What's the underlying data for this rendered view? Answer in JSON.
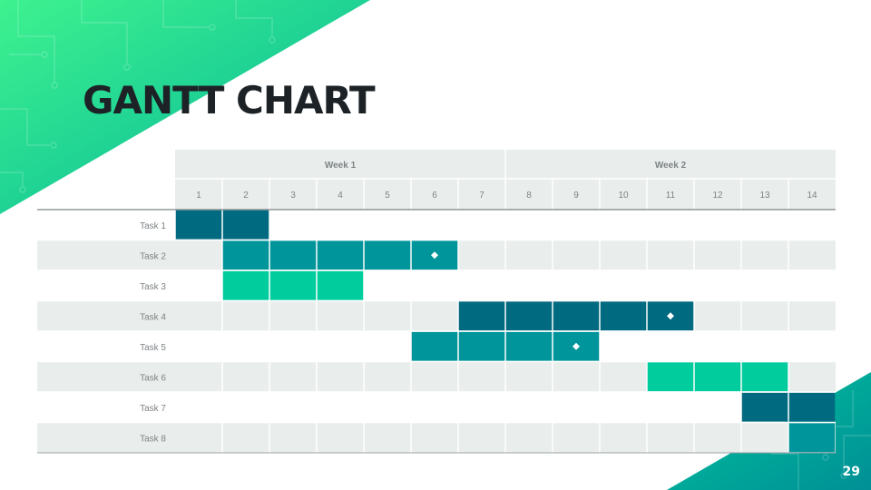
{
  "title": "GANTT CHART",
  "page_number": "29",
  "colors": {
    "dark": "#006a80",
    "mid": "#00959a",
    "light": "#00cc9e",
    "header_bg": "#e9eeec",
    "row_alt": "#e9eeec",
    "text": "#1c2226",
    "muted": "#7d8285",
    "deco_green": "#2ee79a",
    "deco_teal": "#00a596"
  },
  "chart_data": {
    "type": "gantt",
    "weeks": [
      "Week 1",
      "Week 2"
    ],
    "days": [
      "1",
      "2",
      "3",
      "4",
      "5",
      "6",
      "7",
      "8",
      "9",
      "10",
      "11",
      "12",
      "13",
      "14"
    ],
    "tasks": [
      {
        "label": "Task 1",
        "start": 1,
        "end": 2,
        "color": "dark",
        "milestone": null
      },
      {
        "label": "Task 2",
        "start": 2,
        "end": 6,
        "color": "mid",
        "milestone": 6
      },
      {
        "label": "Task 3",
        "start": 2,
        "end": 4,
        "color": "light",
        "milestone": null
      },
      {
        "label": "Task 4",
        "start": 7,
        "end": 11,
        "color": "dark",
        "milestone": 11
      },
      {
        "label": "Task 5",
        "start": 6,
        "end": 9,
        "color": "mid",
        "milestone": 9
      },
      {
        "label": "Task 6",
        "start": 11,
        "end": 13,
        "color": "light",
        "milestone": null
      },
      {
        "label": "Task 7",
        "start": 13,
        "end": 14,
        "color": "dark",
        "milestone": null
      },
      {
        "label": "Task 8",
        "start": 14,
        "end": 14,
        "color": "mid",
        "milestone": null
      }
    ]
  }
}
